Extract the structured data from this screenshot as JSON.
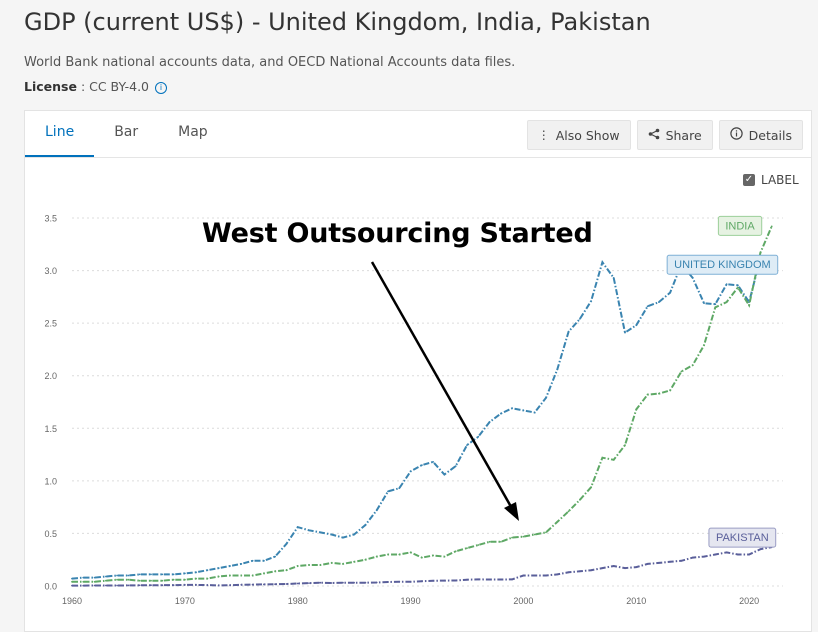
{
  "header": {
    "title": "GDP (current US$) - United Kingdom, India, Pakistan",
    "source": "World Bank national accounts data, and OECD National Accounts data files.",
    "license_label": "License",
    "license_value": " : CC BY-4.0"
  },
  "tabs": [
    {
      "label": "Line",
      "active": true
    },
    {
      "label": "Bar",
      "active": false
    },
    {
      "label": "Map",
      "active": false
    }
  ],
  "toolbar": {
    "also_show": "Also Show",
    "share": "Share",
    "details": "Details"
  },
  "label_toggle": {
    "text": "LABEL",
    "checked": true
  },
  "annotation": {
    "text": "West Outsourcing Started"
  },
  "chart_data": {
    "type": "line",
    "ylim": [
      0,
      3.5
    ],
    "xlim": [
      1960,
      2023
    ],
    "y_ticks": [
      "0.0",
      "0.5",
      "1.0",
      "1.5",
      "2.0",
      "2.5",
      "3.0",
      "3.5"
    ],
    "x_ticks": [
      "1960",
      "1970",
      "1980",
      "1990",
      "2000",
      "2010",
      "2020"
    ],
    "grid": true,
    "series": [
      {
        "name": "UNITED KINGDOM",
        "color": "#3a84b0",
        "x": [
          1960,
          1961,
          1962,
          1963,
          1964,
          1965,
          1966,
          1967,
          1968,
          1969,
          1970,
          1971,
          1972,
          1973,
          1974,
          1975,
          1976,
          1977,
          1978,
          1979,
          1980,
          1981,
          1982,
          1983,
          1984,
          1985,
          1986,
          1987,
          1988,
          1989,
          1990,
          1991,
          1992,
          1993,
          1994,
          1995,
          1996,
          1997,
          1998,
          1999,
          2000,
          2001,
          2002,
          2003,
          2004,
          2005,
          2006,
          2007,
          2008,
          2009,
          2010,
          2011,
          2012,
          2013,
          2014,
          2015,
          2016,
          2017,
          2018,
          2019,
          2020,
          2021,
          2022
        ],
        "values": [
          0.07,
          0.08,
          0.08,
          0.09,
          0.1,
          0.1,
          0.11,
          0.11,
          0.11,
          0.11,
          0.12,
          0.13,
          0.15,
          0.17,
          0.19,
          0.21,
          0.24,
          0.24,
          0.28,
          0.4,
          0.56,
          0.53,
          0.51,
          0.49,
          0.46,
          0.49,
          0.58,
          0.72,
          0.9,
          0.93,
          1.09,
          1.15,
          1.18,
          1.06,
          1.14,
          1.34,
          1.42,
          1.56,
          1.64,
          1.69,
          1.67,
          1.65,
          1.79,
          2.06,
          2.42,
          2.54,
          2.71,
          3.08,
          2.93,
          2.41,
          2.48,
          2.66,
          2.7,
          2.79,
          3.06,
          2.93,
          2.69,
          2.68,
          2.87,
          2.86,
          2.7,
          3.12,
          3.07
        ]
      },
      {
        "name": "INDIA",
        "color": "#5ea865",
        "x": [
          1960,
          1961,
          1962,
          1963,
          1964,
          1965,
          1966,
          1967,
          1968,
          1969,
          1970,
          1971,
          1972,
          1973,
          1974,
          1975,
          1976,
          1977,
          1978,
          1979,
          1980,
          1981,
          1982,
          1983,
          1984,
          1985,
          1986,
          1987,
          1988,
          1989,
          1990,
          1991,
          1992,
          1993,
          1994,
          1995,
          1996,
          1997,
          1998,
          1999,
          2000,
          2001,
          2002,
          2003,
          2004,
          2005,
          2006,
          2007,
          2008,
          2009,
          2010,
          2011,
          2012,
          2013,
          2014,
          2015,
          2016,
          2017,
          2018,
          2019,
          2020,
          2021,
          2022
        ],
        "values": [
          0.04,
          0.04,
          0.04,
          0.05,
          0.06,
          0.06,
          0.05,
          0.05,
          0.05,
          0.06,
          0.06,
          0.07,
          0.07,
          0.09,
          0.1,
          0.1,
          0.1,
          0.12,
          0.14,
          0.15,
          0.19,
          0.2,
          0.2,
          0.22,
          0.21,
          0.23,
          0.25,
          0.28,
          0.3,
          0.3,
          0.32,
          0.27,
          0.29,
          0.28,
          0.33,
          0.36,
          0.39,
          0.42,
          0.42,
          0.46,
          0.47,
          0.49,
          0.51,
          0.61,
          0.71,
          0.82,
          0.94,
          1.22,
          1.2,
          1.34,
          1.68,
          1.82,
          1.83,
          1.86,
          2.04,
          2.1,
          2.29,
          2.65,
          2.7,
          2.84,
          2.67,
          3.17,
          3.42
        ]
      },
      {
        "name": "PAKISTAN",
        "color": "#5a5f9a",
        "x": [
          1960,
          1961,
          1962,
          1963,
          1964,
          1965,
          1966,
          1967,
          1968,
          1969,
          1970,
          1971,
          1972,
          1973,
          1974,
          1975,
          1976,
          1977,
          1978,
          1979,
          1980,
          1981,
          1982,
          1983,
          1984,
          1985,
          1986,
          1987,
          1988,
          1989,
          1990,
          1991,
          1992,
          1993,
          1994,
          1995,
          1996,
          1997,
          1998,
          1999,
          2000,
          2001,
          2002,
          2003,
          2004,
          2005,
          2006,
          2007,
          2008,
          2009,
          2010,
          2011,
          2012,
          2013,
          2014,
          2015,
          2016,
          2017,
          2018,
          2019,
          2020,
          2021,
          2022
        ],
        "values": [
          0.004,
          0.004,
          0.005,
          0.005,
          0.005,
          0.006,
          0.007,
          0.008,
          0.008,
          0.009,
          0.01,
          0.01,
          0.009,
          0.006,
          0.008,
          0.011,
          0.013,
          0.015,
          0.017,
          0.019,
          0.024,
          0.028,
          0.031,
          0.029,
          0.031,
          0.031,
          0.031,
          0.033,
          0.038,
          0.04,
          0.04,
          0.046,
          0.049,
          0.051,
          0.052,
          0.06,
          0.063,
          0.062,
          0.062,
          0.063,
          0.1,
          0.1,
          0.1,
          0.11,
          0.13,
          0.14,
          0.15,
          0.17,
          0.19,
          0.17,
          0.18,
          0.21,
          0.22,
          0.23,
          0.24,
          0.27,
          0.28,
          0.3,
          0.32,
          0.3,
          0.3,
          0.35,
          0.37
        ]
      }
    ],
    "labels": [
      {
        "text": "INDIA",
        "series": 1,
        "bg": "#e6f2e2",
        "border": "#9ccf9a",
        "color": "#5ea865"
      },
      {
        "text": "UNITED KINGDOM",
        "series": 0,
        "bg": "#deecf6",
        "border": "#7fb0d6",
        "color": "#3a84b0"
      },
      {
        "text": "PAKISTAN",
        "series": 2,
        "bg": "#e5e6f0",
        "border": "#9a9dc4",
        "color": "#5a5f9a"
      }
    ]
  }
}
